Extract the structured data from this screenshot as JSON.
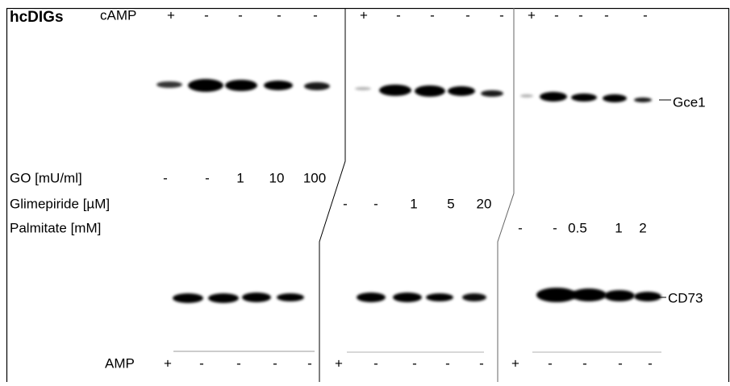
{
  "title": "hcDIGs",
  "top_row": {
    "label": "cAMP",
    "panels": [
      [
        "+",
        "-",
        "-",
        "-",
        "-"
      ],
      [
        "+",
        "-",
        "-",
        "-",
        "-"
      ],
      [
        "+",
        "-",
        "-",
        "-",
        "-"
      ]
    ]
  },
  "treatments": [
    {
      "label": "GO [mU/ml]",
      "values": [
        "-",
        "-",
        "1",
        "10",
        "100"
      ]
    },
    {
      "label": "Glimepiride [µM]",
      "values": [
        "-",
        "-",
        "1",
        "5",
        "20"
      ]
    },
    {
      "label": "Palmitate [mM]",
      "values": [
        "-",
        "-",
        "0.5",
        "1",
        "2"
      ]
    }
  ],
  "bottom_row": {
    "label": "AMP",
    "panels": [
      [
        "+",
        "-",
        "-",
        "-",
        "-"
      ],
      [
        "+",
        "-",
        "-",
        "-",
        "-"
      ],
      [
        "+",
        "-",
        "-",
        "-",
        "-"
      ]
    ]
  },
  "bands": [
    "Gce1",
    "CD73"
  ]
}
